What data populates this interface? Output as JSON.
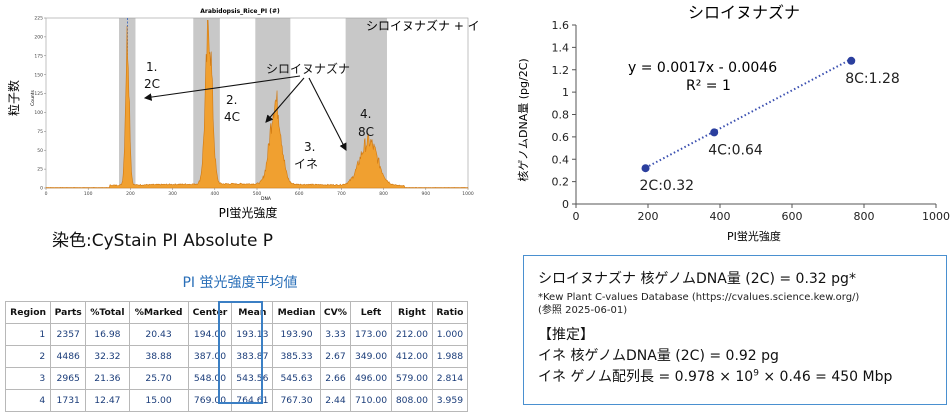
{
  "histogram": {
    "plot_title": "Arabidopsis_Rice_PI (#)",
    "legend_text": "シロイヌナズナ + イネ",
    "ylabel": "粒子数",
    "ylabel_small": "Counts",
    "xlabel": "PI蛍光強度",
    "xlabel_small": "DNA",
    "yticks": [
      "0",
      "25",
      "50",
      "75",
      "100",
      "125",
      "150",
      "175",
      "200",
      "225"
    ],
    "xticks": [
      "0",
      "100",
      "200",
      "300",
      "400",
      "500",
      "600",
      "700",
      "800",
      "900",
      "1000"
    ],
    "colors": {
      "fill": "#f0a030",
      "stroke": "#d07810",
      "gate": "#c8c8c8"
    },
    "gates": [
      {
        "left": 173,
        "right": 212
      },
      {
        "left": 349,
        "right": 412
      },
      {
        "left": 496,
        "right": 579
      },
      {
        "left": 710,
        "right": 808
      }
    ],
    "peaks": [
      {
        "center": 193,
        "height": 195,
        "sigma": 4.5
      },
      {
        "center": 386,
        "height": 205,
        "sigma": 8
      },
      {
        "center": 544,
        "height": 110,
        "sigma": 13
      },
      {
        "center": 765,
        "height": 58,
        "sigma": 21
      }
    ],
    "annotations": {
      "species": "シロイヌナズナ",
      "p1_num": "1.",
      "p1_lab": "2C",
      "p2_num": "2.",
      "p2_lab": "4C",
      "p3_num": "3.",
      "p3_lab": "イネ",
      "p4_num": "4.",
      "p4_lab": "8C"
    }
  },
  "stain_label": "染色:CyStain PI Absolute P",
  "table": {
    "title": "PI 蛍光強度平均値",
    "headers": [
      "Region",
      "Parts",
      "%Total",
      "%Marked",
      "Center",
      "Mean",
      "Median",
      "CV%",
      "Left",
      "Right",
      "Ratio"
    ],
    "rows": [
      [
        "1",
        "2357",
        "16.98",
        "20.43",
        "194.00",
        "193.13",
        "193.90",
        "3.33",
        "173.00",
        "212.00",
        "1.000"
      ],
      [
        "2",
        "4486",
        "32.32",
        "38.88",
        "387.00",
        "383.87",
        "385.33",
        "2.67",
        "349.00",
        "412.00",
        "1.988"
      ],
      [
        "3",
        "2965",
        "21.36",
        "25.70",
        "548.00",
        "543.56",
        "545.63",
        "2.66",
        "496.00",
        "579.00",
        "2.814"
      ],
      [
        "4",
        "1731",
        "12.47",
        "15.00",
        "769.00",
        "764.61",
        "767.30",
        "2.44",
        "710.00",
        "808.00",
        "3.959"
      ]
    ]
  },
  "chart_data": {
    "type": "scatter",
    "title": "シロイヌナズナ",
    "xlabel": "PI蛍光強度",
    "ylabel": "核ゲノムDNA量 (pg/2C)",
    "xlim": [
      0,
      1000
    ],
    "ylim": [
      0,
      1.6
    ],
    "xticks": [
      "0",
      "200",
      "400",
      "600",
      "800",
      "1000"
    ],
    "yticks": [
      "0",
      "0.2",
      "0.4",
      "0.6",
      "0.8",
      "1",
      "1.2",
      "1.4",
      "1.6"
    ],
    "points": [
      {
        "x": 193.13,
        "y": 0.32,
        "label": "2C:0.32"
      },
      {
        "x": 383.87,
        "y": 0.64,
        "label": "4C:0.64"
      },
      {
        "x": 764.61,
        "y": 1.28,
        "label": "8C:1.28"
      }
    ],
    "trendline": {
      "slope": 0.0017,
      "intercept": -0.0046,
      "equation": "y = 0.0017x - 0.0046",
      "r2": "R² = 1"
    },
    "colors": {
      "point": "#2b3f9e",
      "line": "#3a4fb0"
    },
    "grid": false
  },
  "info": {
    "line1": "シロイヌナズナ 核ゲノムDNA量 (2C) = 0.32 pg*",
    "ref1": "*Kew Plant C-values Database (https://cvalues.science.kew.org/)",
    "ref2": "(参照 2025-06-01)",
    "heading": "【推定】",
    "line3": "イネ 核ゲノムDNA量 (2C) = 0.92 pg",
    "line4_pre": "イネ ゲノム配列長 = 0.978 × 10",
    "line4_sup": "9",
    "line4_post": " × 0.46 = 450 Mbp"
  }
}
